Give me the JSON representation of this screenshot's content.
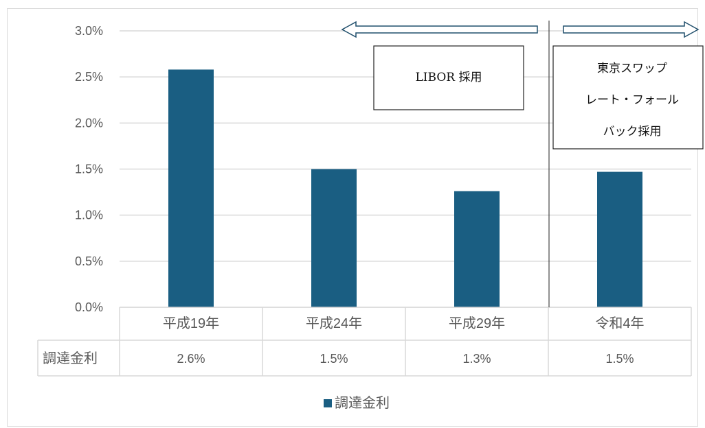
{
  "chart_data": {
    "type": "bar",
    "categories": [
      "平成19年",
      "平成24年",
      "平成29年",
      "令和4年"
    ],
    "series": [
      {
        "name": "調達金利",
        "values": [
          2.58,
          1.5,
          1.26,
          1.47
        ],
        "labels": [
          "2.6%",
          "1.5%",
          "1.3%",
          "1.5%"
        ]
      }
    ],
    "ylim": [
      0,
      3.0
    ],
    "y_ticks": [
      "0.0%",
      "0.5%",
      "1.0%",
      "1.5%",
      "2.0%",
      "2.5%",
      "3.0%"
    ],
    "grid": true,
    "legend": "bottom",
    "data_table": {
      "row_label": "調達金利"
    },
    "colors": {
      "bar": "#1a5e82",
      "grid": "#d9d9d9",
      "text": "#595959"
    },
    "annotations": {
      "left_box": "LIBOR 採用",
      "right_box_lines": [
        "東京スワップ",
        "レート・フォール",
        "バック採用"
      ],
      "arrow_left": "left-arrow-icon",
      "arrow_right": "right-arrow-icon"
    }
  }
}
